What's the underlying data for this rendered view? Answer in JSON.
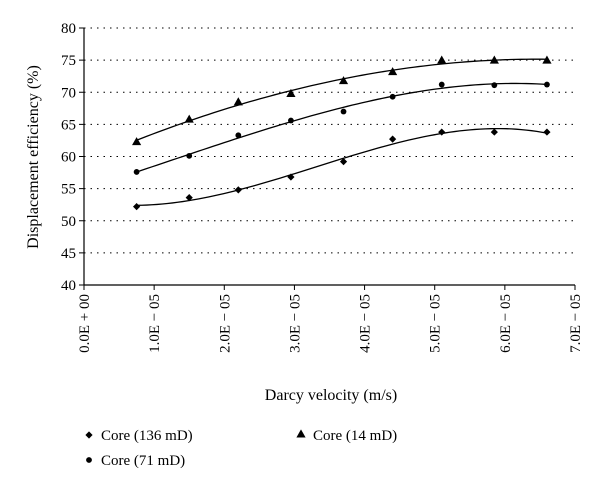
{
  "chart_data": {
    "type": "scatter",
    "xlabel": "Darcy velocity (m/s)",
    "ylabel": "Displacement efficiency (%)",
    "xlim": [
      0,
      7e-05
    ],
    "ylim": [
      40,
      80
    ],
    "x_tick_labels": [
      "0.0E + 00",
      "1.0E − 05",
      "2.0E − 05",
      "3.0E − 05",
      "4.0E − 05",
      "5.0E − 05",
      "6.0E − 05",
      "7.0E − 05"
    ],
    "y_tick_labels": [
      "40",
      "45",
      "50",
      "55",
      "60",
      "65",
      "70",
      "75",
      "80"
    ],
    "grid": "horizontal dotted",
    "legend_position": "bottom",
    "trendlines": true,
    "series": [
      {
        "name": "Core (136 mD)",
        "marker": "diamond",
        "x": [
          7.5e-06,
          1.5e-05,
          2.2e-05,
          2.95e-05,
          3.7e-05,
          4.4e-05,
          5.1e-05,
          5.85e-05,
          6.6e-05
        ],
        "values": [
          52.2,
          53.6,
          54.8,
          56.8,
          59.2,
          62.7,
          63.8,
          63.8,
          63.8
        ]
      },
      {
        "name": "Core (71 mD)",
        "marker": "circle",
        "x": [
          7.5e-06,
          1.5e-05,
          2.2e-05,
          2.95e-05,
          3.7e-05,
          4.4e-05,
          5.1e-05,
          5.85e-05,
          6.6e-05
        ],
        "values": [
          57.6,
          60.1,
          63.3,
          65.6,
          67.0,
          69.3,
          71.2,
          71.1,
          71.2
        ]
      },
      {
        "name": "Core (14 mD)",
        "marker": "triangle",
        "x": [
          7.5e-06,
          1.5e-05,
          2.2e-05,
          2.95e-05,
          3.7e-05,
          4.4e-05,
          5.1e-05,
          5.85e-05,
          6.6e-05
        ],
        "values": [
          62.3,
          65.8,
          68.5,
          69.8,
          71.8,
          73.2,
          75.0,
          75.0,
          75.0
        ]
      }
    ]
  }
}
